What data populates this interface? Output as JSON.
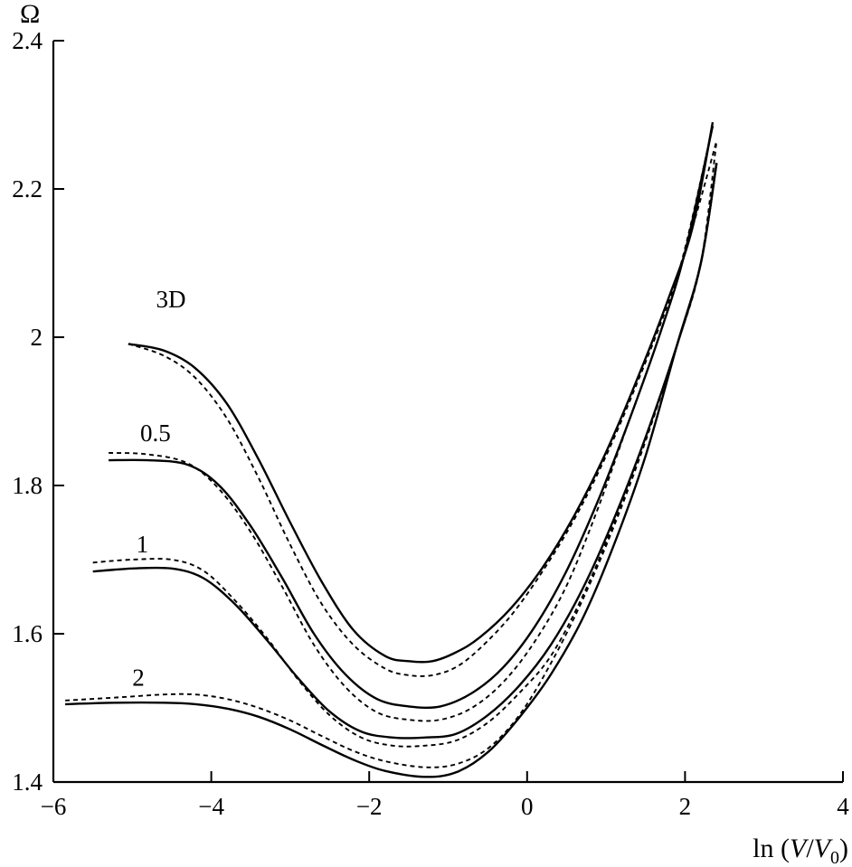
{
  "chart_data": {
    "type": "line",
    "title": "",
    "xlabel_prefix": "ln (",
    "xlabel_v": "V",
    "xlabel_slash": "/",
    "xlabel_v0": "V",
    "xlabel_sub": "0",
    "xlabel_suffix": ")",
    "ylabel": "Ω",
    "xlim": [
      -6,
      4
    ],
    "ylim": [
      1.4,
      2.4
    ],
    "x_ticks": [
      -6,
      -4,
      -2,
      0,
      2,
      4
    ],
    "x_tick_labels": [
      "−6",
      "−4",
      "−2",
      "0",
      "2",
      "4"
    ],
    "y_ticks": [
      1.4,
      1.6,
      1.8,
      2.0,
      2.2,
      2.4
    ],
    "y_tick_labels": [
      "1.4",
      "1.6",
      "1.8",
      "2",
      "2.2",
      "2.4"
    ],
    "series": [
      {
        "name": "3D",
        "label_pos": [
          -4.7,
          2.04
        ],
        "solid": [
          [
            -5.05,
            1.991
          ],
          [
            -4.6,
            1.982
          ],
          [
            -4.2,
            1.958
          ],
          [
            -3.8,
            1.91
          ],
          [
            -3.4,
            1.835
          ],
          [
            -3.0,
            1.75
          ],
          [
            -2.6,
            1.67
          ],
          [
            -2.2,
            1.605
          ],
          [
            -1.8,
            1.57
          ],
          [
            -1.5,
            1.563
          ],
          [
            -1.2,
            1.563
          ],
          [
            -0.9,
            1.575
          ],
          [
            -0.6,
            1.595
          ],
          [
            -0.2,
            1.635
          ],
          [
            0.2,
            1.69
          ],
          [
            0.6,
            1.76
          ],
          [
            1.0,
            1.845
          ],
          [
            1.4,
            1.945
          ],
          [
            1.8,
            2.055
          ],
          [
            2.1,
            2.15
          ],
          [
            2.35,
            2.29
          ]
        ],
        "dashed": [
          [
            -5.05,
            1.991
          ],
          [
            -4.6,
            1.975
          ],
          [
            -4.2,
            1.945
          ],
          [
            -3.8,
            1.89
          ],
          [
            -3.4,
            1.81
          ],
          [
            -3.0,
            1.72
          ],
          [
            -2.6,
            1.64
          ],
          [
            -2.2,
            1.585
          ],
          [
            -1.8,
            1.553
          ],
          [
            -1.5,
            1.544
          ],
          [
            -1.2,
            1.544
          ],
          [
            -0.9,
            1.555
          ],
          [
            -0.6,
            1.58
          ],
          [
            -0.2,
            1.625
          ],
          [
            0.2,
            1.685
          ],
          [
            0.6,
            1.755
          ],
          [
            1.0,
            1.84
          ],
          [
            1.4,
            1.94
          ],
          [
            1.8,
            2.05
          ],
          [
            2.1,
            2.15
          ],
          [
            2.4,
            2.265
          ]
        ]
      },
      {
        "name": "0.5",
        "label_pos": [
          -4.9,
          1.86
        ],
        "solid": [
          [
            -5.3,
            1.834
          ],
          [
            -4.8,
            1.834
          ],
          [
            -4.3,
            1.828
          ],
          [
            -3.9,
            1.8
          ],
          [
            -3.5,
            1.745
          ],
          [
            -3.1,
            1.675
          ],
          [
            -2.7,
            1.6
          ],
          [
            -2.3,
            1.545
          ],
          [
            -1.9,
            1.512
          ],
          [
            -1.5,
            1.502
          ],
          [
            -1.1,
            1.502
          ],
          [
            -0.7,
            1.52
          ],
          [
            -0.3,
            1.555
          ],
          [
            0.1,
            1.61
          ],
          [
            0.5,
            1.685
          ],
          [
            0.9,
            1.78
          ],
          [
            1.3,
            1.89
          ],
          [
            1.7,
            2.01
          ],
          [
            2.0,
            2.115
          ],
          [
            2.35,
            2.285
          ]
        ],
        "dashed": [
          [
            -5.3,
            1.844
          ],
          [
            -4.8,
            1.842
          ],
          [
            -4.3,
            1.83
          ],
          [
            -3.9,
            1.795
          ],
          [
            -3.5,
            1.737
          ],
          [
            -3.1,
            1.663
          ],
          [
            -2.7,
            1.585
          ],
          [
            -2.3,
            1.528
          ],
          [
            -1.9,
            1.494
          ],
          [
            -1.5,
            1.484
          ],
          [
            -1.1,
            1.484
          ],
          [
            -0.7,
            1.5
          ],
          [
            -0.3,
            1.535
          ],
          [
            0.1,
            1.59
          ],
          [
            0.5,
            1.665
          ],
          [
            0.9,
            1.77
          ],
          [
            1.3,
            1.89
          ],
          [
            1.7,
            2.01
          ],
          [
            2.0,
            2.12
          ],
          [
            2.35,
            2.285
          ]
        ]
      },
      {
        "name": "1",
        "label_pos": [
          -4.95,
          1.71
        ],
        "solid": [
          [
            -5.5,
            1.684
          ],
          [
            -5.0,
            1.688
          ],
          [
            -4.5,
            1.688
          ],
          [
            -4.1,
            1.675
          ],
          [
            -3.7,
            1.64
          ],
          [
            -3.3,
            1.592
          ],
          [
            -2.9,
            1.54
          ],
          [
            -2.5,
            1.495
          ],
          [
            -2.1,
            1.468
          ],
          [
            -1.7,
            1.46
          ],
          [
            -1.3,
            1.46
          ],
          [
            -0.9,
            1.465
          ],
          [
            -0.5,
            1.49
          ],
          [
            -0.1,
            1.53
          ],
          [
            0.3,
            1.585
          ],
          [
            0.7,
            1.66
          ],
          [
            1.1,
            1.755
          ],
          [
            1.5,
            1.865
          ],
          [
            1.9,
            1.99
          ],
          [
            2.2,
            2.1
          ],
          [
            2.4,
            2.235
          ]
        ],
        "dashed": [
          [
            -5.5,
            1.696
          ],
          [
            -5.0,
            1.7
          ],
          [
            -4.5,
            1.7
          ],
          [
            -4.1,
            1.685
          ],
          [
            -3.7,
            1.645
          ],
          [
            -3.3,
            1.595
          ],
          [
            -2.9,
            1.538
          ],
          [
            -2.5,
            1.49
          ],
          [
            -2.1,
            1.46
          ],
          [
            -1.7,
            1.449
          ],
          [
            -1.3,
            1.449
          ],
          [
            -0.9,
            1.456
          ],
          [
            -0.5,
            1.48
          ],
          [
            -0.1,
            1.52
          ],
          [
            0.3,
            1.57
          ],
          [
            0.7,
            1.65
          ],
          [
            1.1,
            1.75
          ],
          [
            1.5,
            1.865
          ],
          [
            1.9,
            1.99
          ],
          [
            2.2,
            2.1
          ],
          [
            2.4,
            2.265
          ]
        ]
      },
      {
        "name": "2",
        "label_pos": [
          -5.0,
          1.53
        ],
        "solid": [
          [
            -5.85,
            1.505
          ],
          [
            -5.2,
            1.507
          ],
          [
            -4.6,
            1.507
          ],
          [
            -4.2,
            1.505
          ],
          [
            -3.8,
            1.499
          ],
          [
            -3.4,
            1.488
          ],
          [
            -3.0,
            1.471
          ],
          [
            -2.6,
            1.45
          ],
          [
            -2.2,
            1.43
          ],
          [
            -1.8,
            1.415
          ],
          [
            -1.3,
            1.407
          ],
          [
            -0.9,
            1.413
          ],
          [
            -0.5,
            1.44
          ],
          [
            -0.1,
            1.487
          ],
          [
            0.3,
            1.545
          ],
          [
            0.7,
            1.62
          ],
          [
            1.1,
            1.72
          ],
          [
            1.5,
            1.84
          ],
          [
            1.9,
            1.99
          ],
          [
            2.2,
            2.1
          ],
          [
            2.4,
            2.235
          ]
        ],
        "dashed": [
          [
            -5.85,
            1.51
          ],
          [
            -5.2,
            1.514
          ],
          [
            -4.6,
            1.518
          ],
          [
            -4.2,
            1.518
          ],
          [
            -3.8,
            1.512
          ],
          [
            -3.4,
            1.5
          ],
          [
            -3.0,
            1.483
          ],
          [
            -2.6,
            1.462
          ],
          [
            -2.2,
            1.442
          ],
          [
            -1.8,
            1.428
          ],
          [
            -1.3,
            1.42
          ],
          [
            -0.9,
            1.424
          ],
          [
            -0.5,
            1.445
          ],
          [
            -0.1,
            1.49
          ],
          [
            0.3,
            1.56
          ],
          [
            0.7,
            1.645
          ],
          [
            1.1,
            1.745
          ],
          [
            1.5,
            1.86
          ],
          [
            1.9,
            1.99
          ],
          [
            2.2,
            2.1
          ],
          [
            2.4,
            2.235
          ]
        ]
      }
    ]
  }
}
